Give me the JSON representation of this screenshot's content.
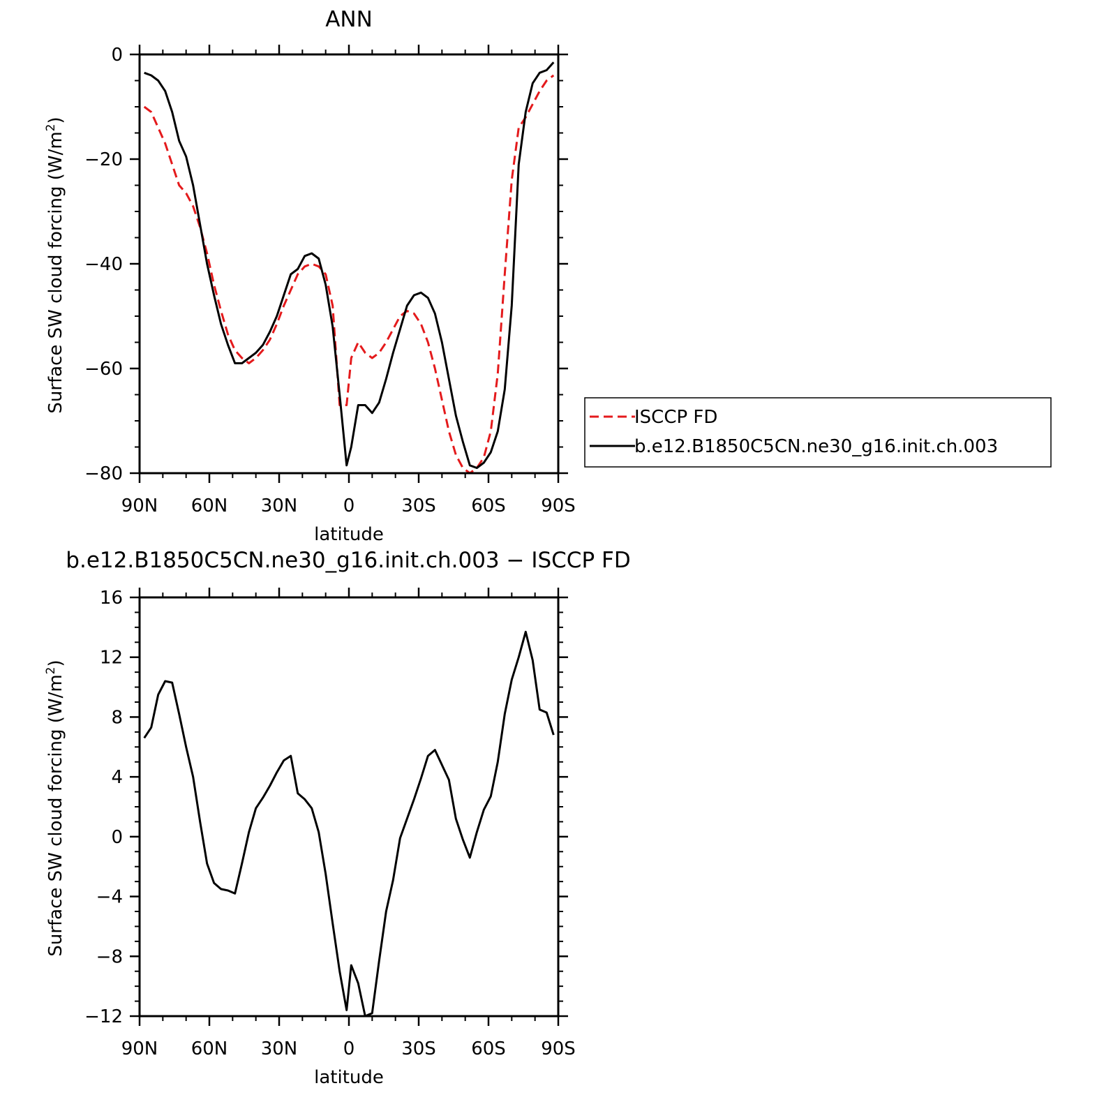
{
  "chart_data": [
    {
      "type": "line",
      "title": "ANN",
      "xlabel": "latitude",
      "ylabel": "Surface SW cloud forcing (W/m",
      "ylabel_sup": "2",
      "ylabel_close": ")",
      "xlim": [
        90,
        -90
      ],
      "ylim": [
        -80,
        0
      ],
      "xticks": [
        90,
        60,
        30,
        0,
        -30,
        -60,
        -90
      ],
      "xtick_labels": [
        "90N",
        "60N",
        "30N",
        "0",
        "30S",
        "60S",
        "90S"
      ],
      "yticks": [
        0,
        -20,
        -40,
        -60,
        -80
      ],
      "ytick_labels": [
        "0",
        "−20",
        "−40",
        "−60",
        "−80"
      ],
      "grid": false,
      "legend_position": "right",
      "series": [
        {
          "name": "ISCCP FD",
          "color": "#e41a1c",
          "dash": "dashed",
          "x": [
            88,
            85,
            82,
            79,
            76,
            73,
            70,
            67,
            64,
            61,
            58,
            55,
            52,
            49,
            46,
            43,
            40,
            37,
            34,
            31,
            28,
            25,
            22,
            19,
            16,
            13,
            10,
            7,
            4,
            1,
            -1,
            -4,
            -7,
            -10,
            -13,
            -16,
            -19,
            -22,
            -25,
            -28,
            -31,
            -34,
            -37,
            -40,
            -43,
            -46,
            -49,
            -52,
            -55,
            -58,
            -61,
            -64,
            -67,
            -70,
            -73,
            -76,
            -79,
            -82,
            -85,
            -88
          ],
          "y": [
            -10,
            -11,
            -14,
            -17,
            -21,
            -25,
            -26.5,
            -29,
            -33,
            -38,
            -44,
            -49,
            -53.5,
            -56.5,
            -58,
            -59,
            -58,
            -56.5,
            -54.5,
            -51.5,
            -48,
            -45,
            -42,
            -40.5,
            -40,
            -40.5,
            -42,
            -48,
            -67,
            -67,
            -58,
            -55,
            -57,
            -58,
            -57,
            -55,
            -52.5,
            -50,
            -49,
            -49.5,
            -51.5,
            -55,
            -60,
            -66,
            -72,
            -76.5,
            -79,
            -80,
            -79,
            -77,
            -72,
            -61,
            -42,
            -24,
            -14,
            -12,
            -9.5,
            -7,
            -5,
            -4
          ]
        },
        {
          "name": "b.e12.B1850C5CN.ne30_g16.init.ch.003",
          "color": "#000000",
          "dash": "solid",
          "x": [
            88,
            85,
            82,
            79,
            76,
            73,
            70,
            67,
            64,
            61,
            58,
            55,
            52,
            49,
            46,
            43,
            40,
            37,
            34,
            31,
            28,
            25,
            22,
            19,
            16,
            13,
            10,
            7,
            4,
            1,
            -1,
            -4,
            -7,
            -10,
            -13,
            -16,
            -19,
            -22,
            -25,
            -28,
            -31,
            -34,
            -37,
            -40,
            -43,
            -46,
            -49,
            -52,
            -55,
            -58,
            -61,
            -64,
            -67,
            -70,
            -73,
            -76,
            -79,
            -82,
            -85,
            -88
          ],
          "y": [
            -3.5,
            -4,
            -5,
            -7,
            -11,
            -16.5,
            -19.5,
            -25,
            -32.5,
            -40,
            -46,
            -51.5,
            -55.5,
            -59,
            -59,
            -58,
            -57,
            -55.5,
            -53,
            -50,
            -46,
            -42,
            -41,
            -38.5,
            -38,
            -39,
            -44,
            -52,
            -65,
            -78.5,
            -75,
            -67,
            -67,
            -68.5,
            -66.5,
            -62,
            -57,
            -52.5,
            -48,
            -46,
            -45.5,
            -46.5,
            -49.5,
            -55,
            -62,
            -69,
            -74,
            -78.5,
            -79,
            -78,
            -76,
            -72,
            -64,
            -48,
            -21,
            -11,
            -5.5,
            -3.5,
            -3,
            -1.5
          ]
        }
      ]
    },
    {
      "type": "line",
      "title": "b.e12.B1850C5CN.ne30_g16.init.ch.003 − ISCCP FD",
      "xlabel": "latitude",
      "ylabel": "Surface SW cloud forcing (W/m",
      "ylabel_sup": "2",
      "ylabel_close": ")",
      "xlim": [
        90,
        -90
      ],
      "ylim": [
        -12,
        16
      ],
      "xticks": [
        90,
        60,
        30,
        0,
        -30,
        -60,
        -90
      ],
      "xtick_labels": [
        "90N",
        "60N",
        "30N",
        "0",
        "30S",
        "60S",
        "90S"
      ],
      "yticks": [
        16,
        12,
        8,
        4,
        0,
        -4,
        -8,
        -12
      ],
      "ytick_labels": [
        "16",
        "12",
        "8",
        "4",
        "0",
        "−4",
        "−8",
        "−12"
      ],
      "grid": false,
      "series": [
        {
          "color": "#000000",
          "dash": "solid",
          "x": [
            88,
            85,
            82,
            79,
            76,
            73,
            70,
            67,
            64,
            61,
            58,
            55,
            52,
            49,
            46,
            43,
            40,
            37,
            34,
            31,
            28,
            25,
            22,
            19,
            16,
            13,
            10,
            7,
            4,
            1,
            -1,
            -4,
            -7,
            -10,
            -13,
            -16,
            -19,
            -22,
            -25,
            -28,
            -31,
            -34,
            -37,
            -40,
            -43,
            -46,
            -49,
            -52,
            -55,
            -58,
            -61,
            -64,
            -67,
            -70,
            -73,
            -76,
            -79,
            -82,
            -85,
            -88
          ],
          "y": [
            6.6,
            7.3,
            9.5,
            10.4,
            10.3,
            8.2,
            6,
            4,
            1,
            -1.8,
            -3.1,
            -3.5,
            -3.6,
            -3.8,
            -1.8,
            0.3,
            1.9,
            2.6,
            3.4,
            4.3,
            5.1,
            5.4,
            2.9,
            2.5,
            1.9,
            0.3,
            -2.5,
            -5.8,
            -9,
            -11.6,
            -8.6,
            -9.8,
            -12,
            -11.8,
            -8.3,
            -5,
            -2.9,
            -0.1,
            1.2,
            2.5,
            3.9,
            5.4,
            5.8,
            4.8,
            3.8,
            1.2,
            -0.2,
            -1.4,
            0.3,
            1.8,
            2.7,
            5,
            8.2,
            10.5,
            12,
            13.7,
            11.8,
            8.5,
            8.3,
            6.8
          ]
        }
      ]
    }
  ],
  "legend": {
    "items": [
      "ISCCP FD",
      "b.e12.B1850C5CN.ne30_g16.init.ch.003"
    ]
  }
}
